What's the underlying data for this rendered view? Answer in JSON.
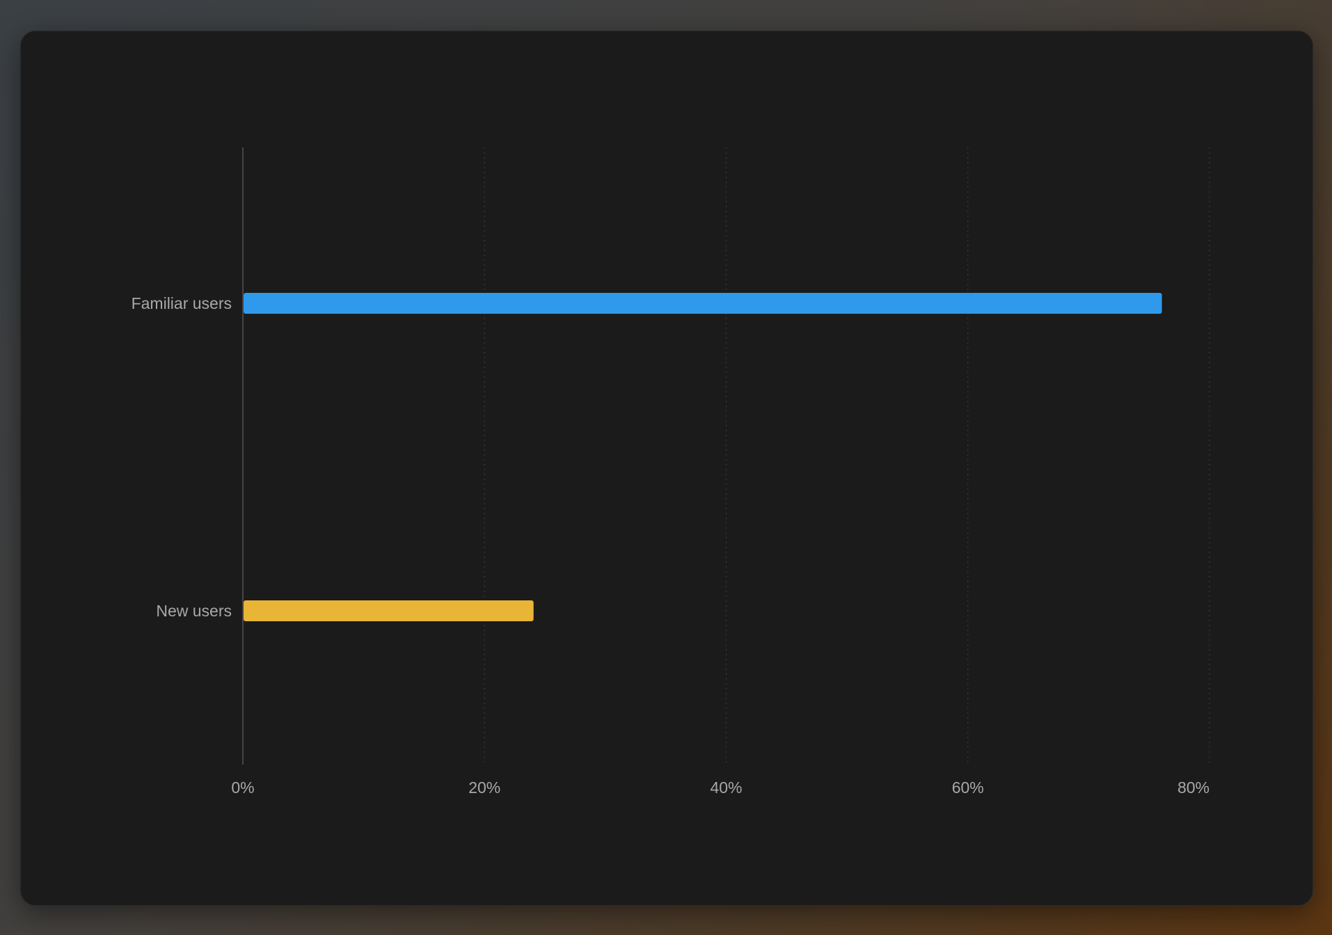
{
  "chart_data": {
    "type": "bar",
    "orientation": "horizontal",
    "categories": [
      "Familiar users",
      "New users"
    ],
    "values": [
      0.76,
      0.24
    ],
    "colors": [
      "#2f9aec",
      "#e8b536"
    ],
    "xlim": [
      0,
      0.8
    ],
    "xticks": [
      0,
      0.2,
      0.4,
      0.6,
      0.8
    ],
    "xtick_labels": [
      "0%",
      "20%",
      "40%",
      "60%",
      "80%"
    ],
    "grid": "vertical dotted",
    "title": "",
    "xlabel": "",
    "ylabel": ""
  },
  "theme": {
    "panel_bg": "#1b1b1b",
    "axis_color": "#555555",
    "grid_color": "#3a3a3a",
    "label_color": "#a8a8a8"
  }
}
